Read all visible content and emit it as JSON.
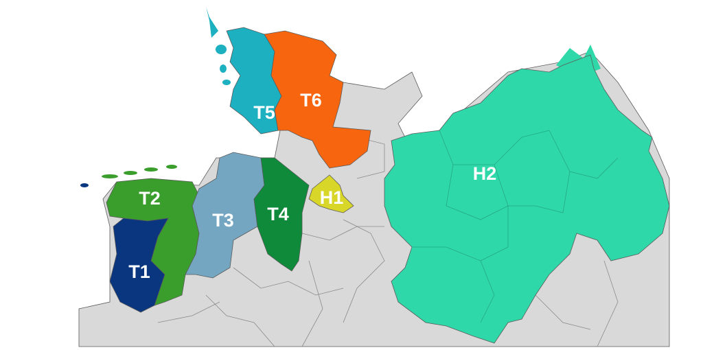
{
  "map": {
    "base_color": "#d9d9d9",
    "border_color": "#5a5a5a",
    "regions": [
      {
        "id": "T1",
        "label": "T1",
        "color": "#0a3680"
      },
      {
        "id": "T2",
        "label": "T2",
        "color": "#3a9e2c"
      },
      {
        "id": "T3",
        "label": "T3",
        "color": "#74a6c2"
      },
      {
        "id": "T4",
        "label": "T4",
        "color": "#0e8a3a"
      },
      {
        "id": "T5",
        "label": "T5",
        "color": "#1cb0c0"
      },
      {
        "id": "T6",
        "label": "T6",
        "color": "#f7650f"
      },
      {
        "id": "H1",
        "label": "H1",
        "color": "#d9d62a"
      },
      {
        "id": "H2",
        "label": "H2",
        "color": "#2fd8a8"
      }
    ]
  }
}
